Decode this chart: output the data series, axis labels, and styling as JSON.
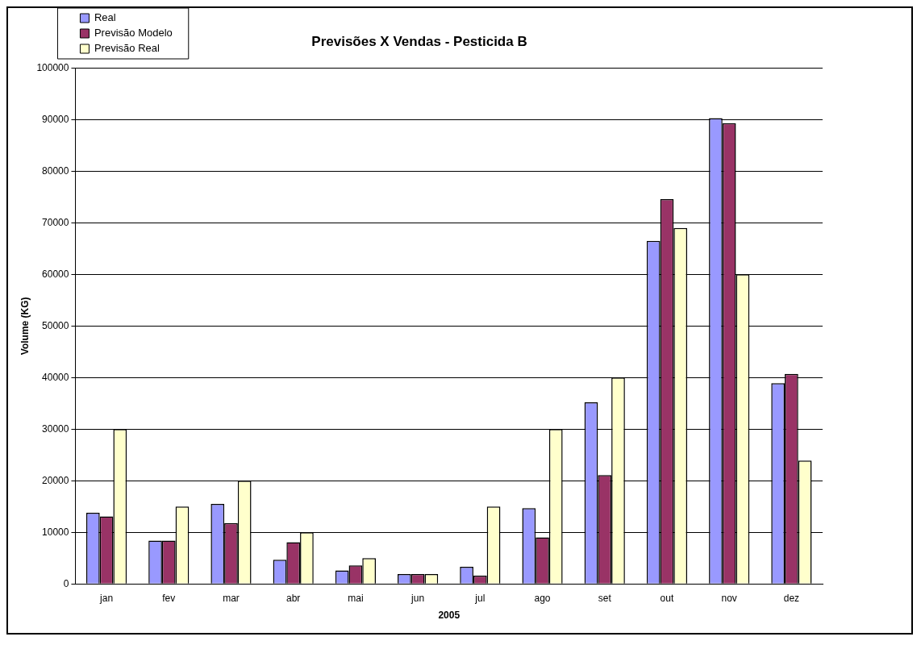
{
  "chart_data": {
    "type": "bar",
    "title": "Previsões X Vendas - Pesticida B",
    "xlabel": "2005",
    "ylabel": "Volume (KG)",
    "categories": [
      "jan",
      "fev",
      "mar",
      "abr",
      "mai",
      "jun",
      "jul",
      "ago",
      "set",
      "out",
      "nov",
      "dez"
    ],
    "series": [
      {
        "name": "Real",
        "color": "#9999ff",
        "values": [
          13800,
          8400,
          15500,
          4700,
          2600,
          1900,
          3300,
          14700,
          35200,
          66500,
          90300,
          38900
        ]
      },
      {
        "name": "Previsão Modelo",
        "color": "#993366",
        "values": [
          13100,
          8400,
          11800,
          8100,
          3600,
          1900,
          1600,
          9000,
          21100,
          74600,
          89300,
          40700
        ]
      },
      {
        "name": "Previsão Real",
        "color": "#ffffcc",
        "values": [
          30000,
          15000,
          20000,
          10000,
          5000,
          1900,
          15000,
          30000,
          40000,
          69000,
          60000,
          23900
        ]
      }
    ],
    "ylim": [
      0,
      100000
    ],
    "yticks": [
      0,
      10000,
      20000,
      30000,
      40000,
      50000,
      60000,
      70000,
      80000,
      90000,
      100000
    ],
    "grid": "y",
    "legend": "top left"
  }
}
